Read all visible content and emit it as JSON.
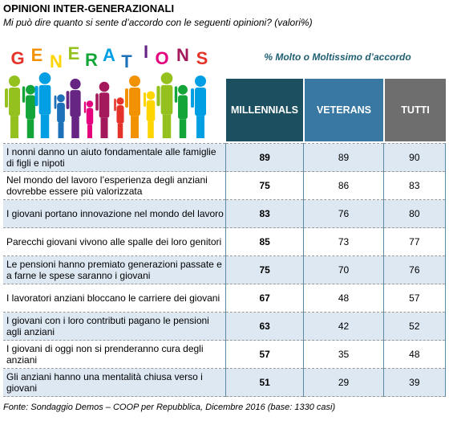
{
  "title": "OPINIONI INTER-GENERAZIONALI",
  "subtitle": "Mi può dire quanto si sente d’accordo con le seguenti opinioni? (valori%)",
  "illustration": {
    "word": "GENERATIONS",
    "colors": [
      "#e63329",
      "#f39200",
      "#ffd500",
      "#95c11f",
      "#13a538",
      "#009ee3",
      "#1d71b8",
      "#662483",
      "#e5007e",
      "#a3195b"
    ]
  },
  "header_note": "% Molto o Moltissimo d’accordo",
  "source": "Fonte: Sondaggio Demos – COOP per Repubblica, Dicembre 2016 (base: 1330 casi)",
  "chart_data": {
    "type": "table",
    "title": "OPINIONI INTER-GENERAZIONALI",
    "columns": [
      "MILLENNIALS",
      "VETERANS",
      "TUTTI"
    ],
    "rows": [
      {
        "label": "I nonni danno un aiuto fondamentale alle famiglie di figli e nipoti",
        "values": [
          89,
          89,
          90
        ]
      },
      {
        "label": "Nel mondo del lavoro l’esperienza degli anziani dovrebbe essere più valorizzata",
        "values": [
          75,
          86,
          83
        ]
      },
      {
        "label": "I giovani portano innovazione nel mondo del lavoro",
        "values": [
          83,
          76,
          80
        ]
      },
      {
        "label": "Parecchi giovani vivono alle spalle dei loro genitori",
        "values": [
          85,
          73,
          77
        ]
      },
      {
        "label": "Le pensioni hanno premiato generazioni passate e a farne le spese saranno i giovani",
        "values": [
          75,
          70,
          76
        ]
      },
      {
        "label": "I lavoratori anziani bloccano le carriere dei giovani",
        "values": [
          67,
          48,
          57
        ]
      },
      {
        "label": "I giovani con i loro contributi pagano le pensioni agli anziani",
        "values": [
          63,
          42,
          52
        ]
      },
      {
        "label": "I giovani di oggi non si prenderanno cura degli anziani",
        "values": [
          57,
          35,
          48
        ]
      },
      {
        "label": "Gli anziani hanno una mentalità chiusa verso i giovani",
        "values": [
          51,
          29,
          39
        ]
      }
    ]
  }
}
